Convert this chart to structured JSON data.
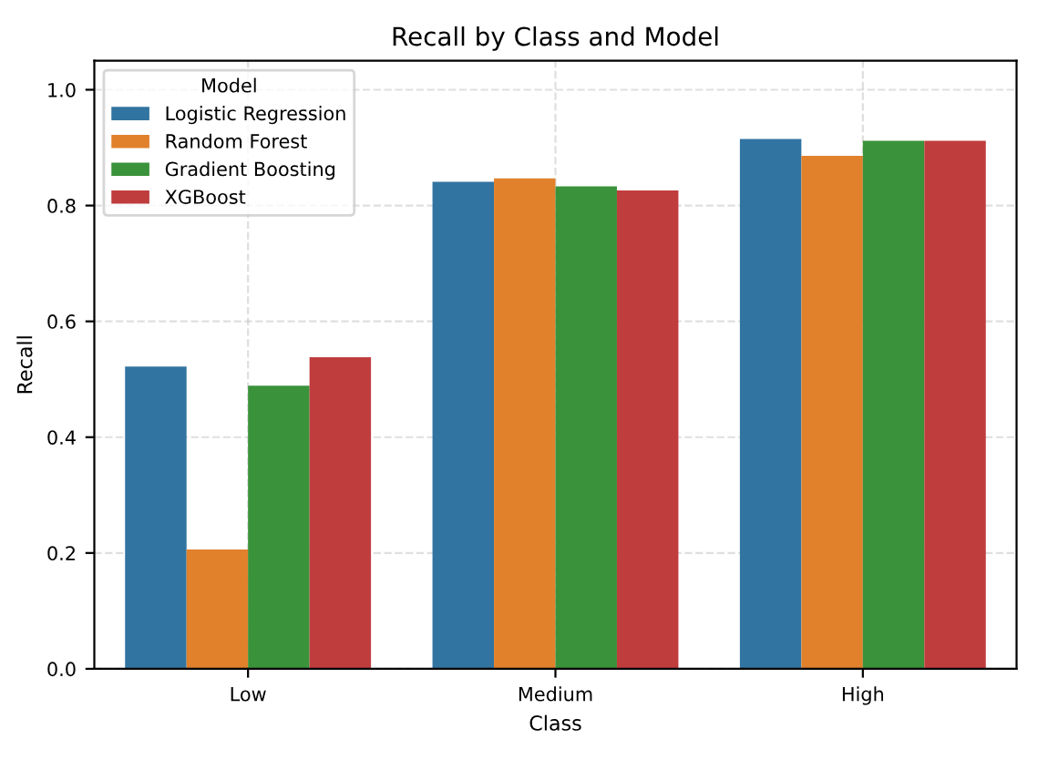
{
  "chart_data": {
    "type": "bar",
    "title": "Recall by Class and Model",
    "xlabel": "Class",
    "ylabel": "Recall",
    "legend_title": "Model",
    "categories": [
      "Low",
      "Medium",
      "High"
    ],
    "series": [
      {
        "name": "Logistic Regression",
        "color": "#3274a1",
        "values": [
          0.522,
          0.841,
          0.915
        ]
      },
      {
        "name": "Random Forest",
        "color": "#e1812c",
        "values": [
          0.206,
          0.847,
          0.886
        ]
      },
      {
        "name": "Gradient Boosting",
        "color": "#3a923a",
        "values": [
          0.489,
          0.833,
          0.912
        ]
      },
      {
        "name": "XGBoost",
        "color": "#c03d3e",
        "values": [
          0.538,
          0.826,
          0.912
        ]
      }
    ],
    "ylim": [
      0,
      1.05
    ],
    "yticks": [
      {
        "value": 0,
        "label": "0.0"
      },
      0.2,
      0.4,
      0.6,
      0.8,
      {
        "value": 1,
        "label": "1.0"
      }
    ],
    "grid": true,
    "legend": "top left"
  }
}
